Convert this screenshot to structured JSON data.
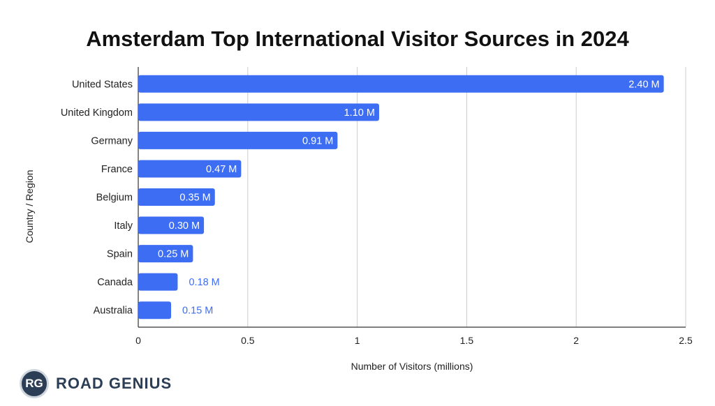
{
  "chart_data": {
    "type": "bar",
    "orientation": "horizontal",
    "title": "Amsterdam Top International Visitor Sources in 2024",
    "xlabel": "Number of Visitors (millions)",
    "ylabel": "Country / Region",
    "xlim": [
      0,
      2.5
    ],
    "xticks": [
      "0",
      "0.5",
      "1",
      "1.5",
      "2",
      "2.5"
    ],
    "xtick_values": [
      0,
      0.5,
      1,
      1.5,
      2,
      2.5
    ],
    "grid": "vertical",
    "bar_color": "#3d6df2",
    "categories": [
      "United States",
      "United Kingdom",
      "Germany",
      "France",
      "Belgium",
      "Italy",
      "Spain",
      "Canada",
      "Australia"
    ],
    "values": [
      2.4,
      1.1,
      0.91,
      0.47,
      0.35,
      0.3,
      0.25,
      0.18,
      0.15
    ],
    "data_labels": [
      "2.40 M",
      "1.10 M",
      "0.91 M",
      "0.47 M",
      "0.35 M",
      "0.30 M",
      "0.25 M",
      "0.18 M",
      "0.15 M"
    ]
  },
  "logo": {
    "badge": "RG",
    "text": "ROAD GENIUS"
  }
}
